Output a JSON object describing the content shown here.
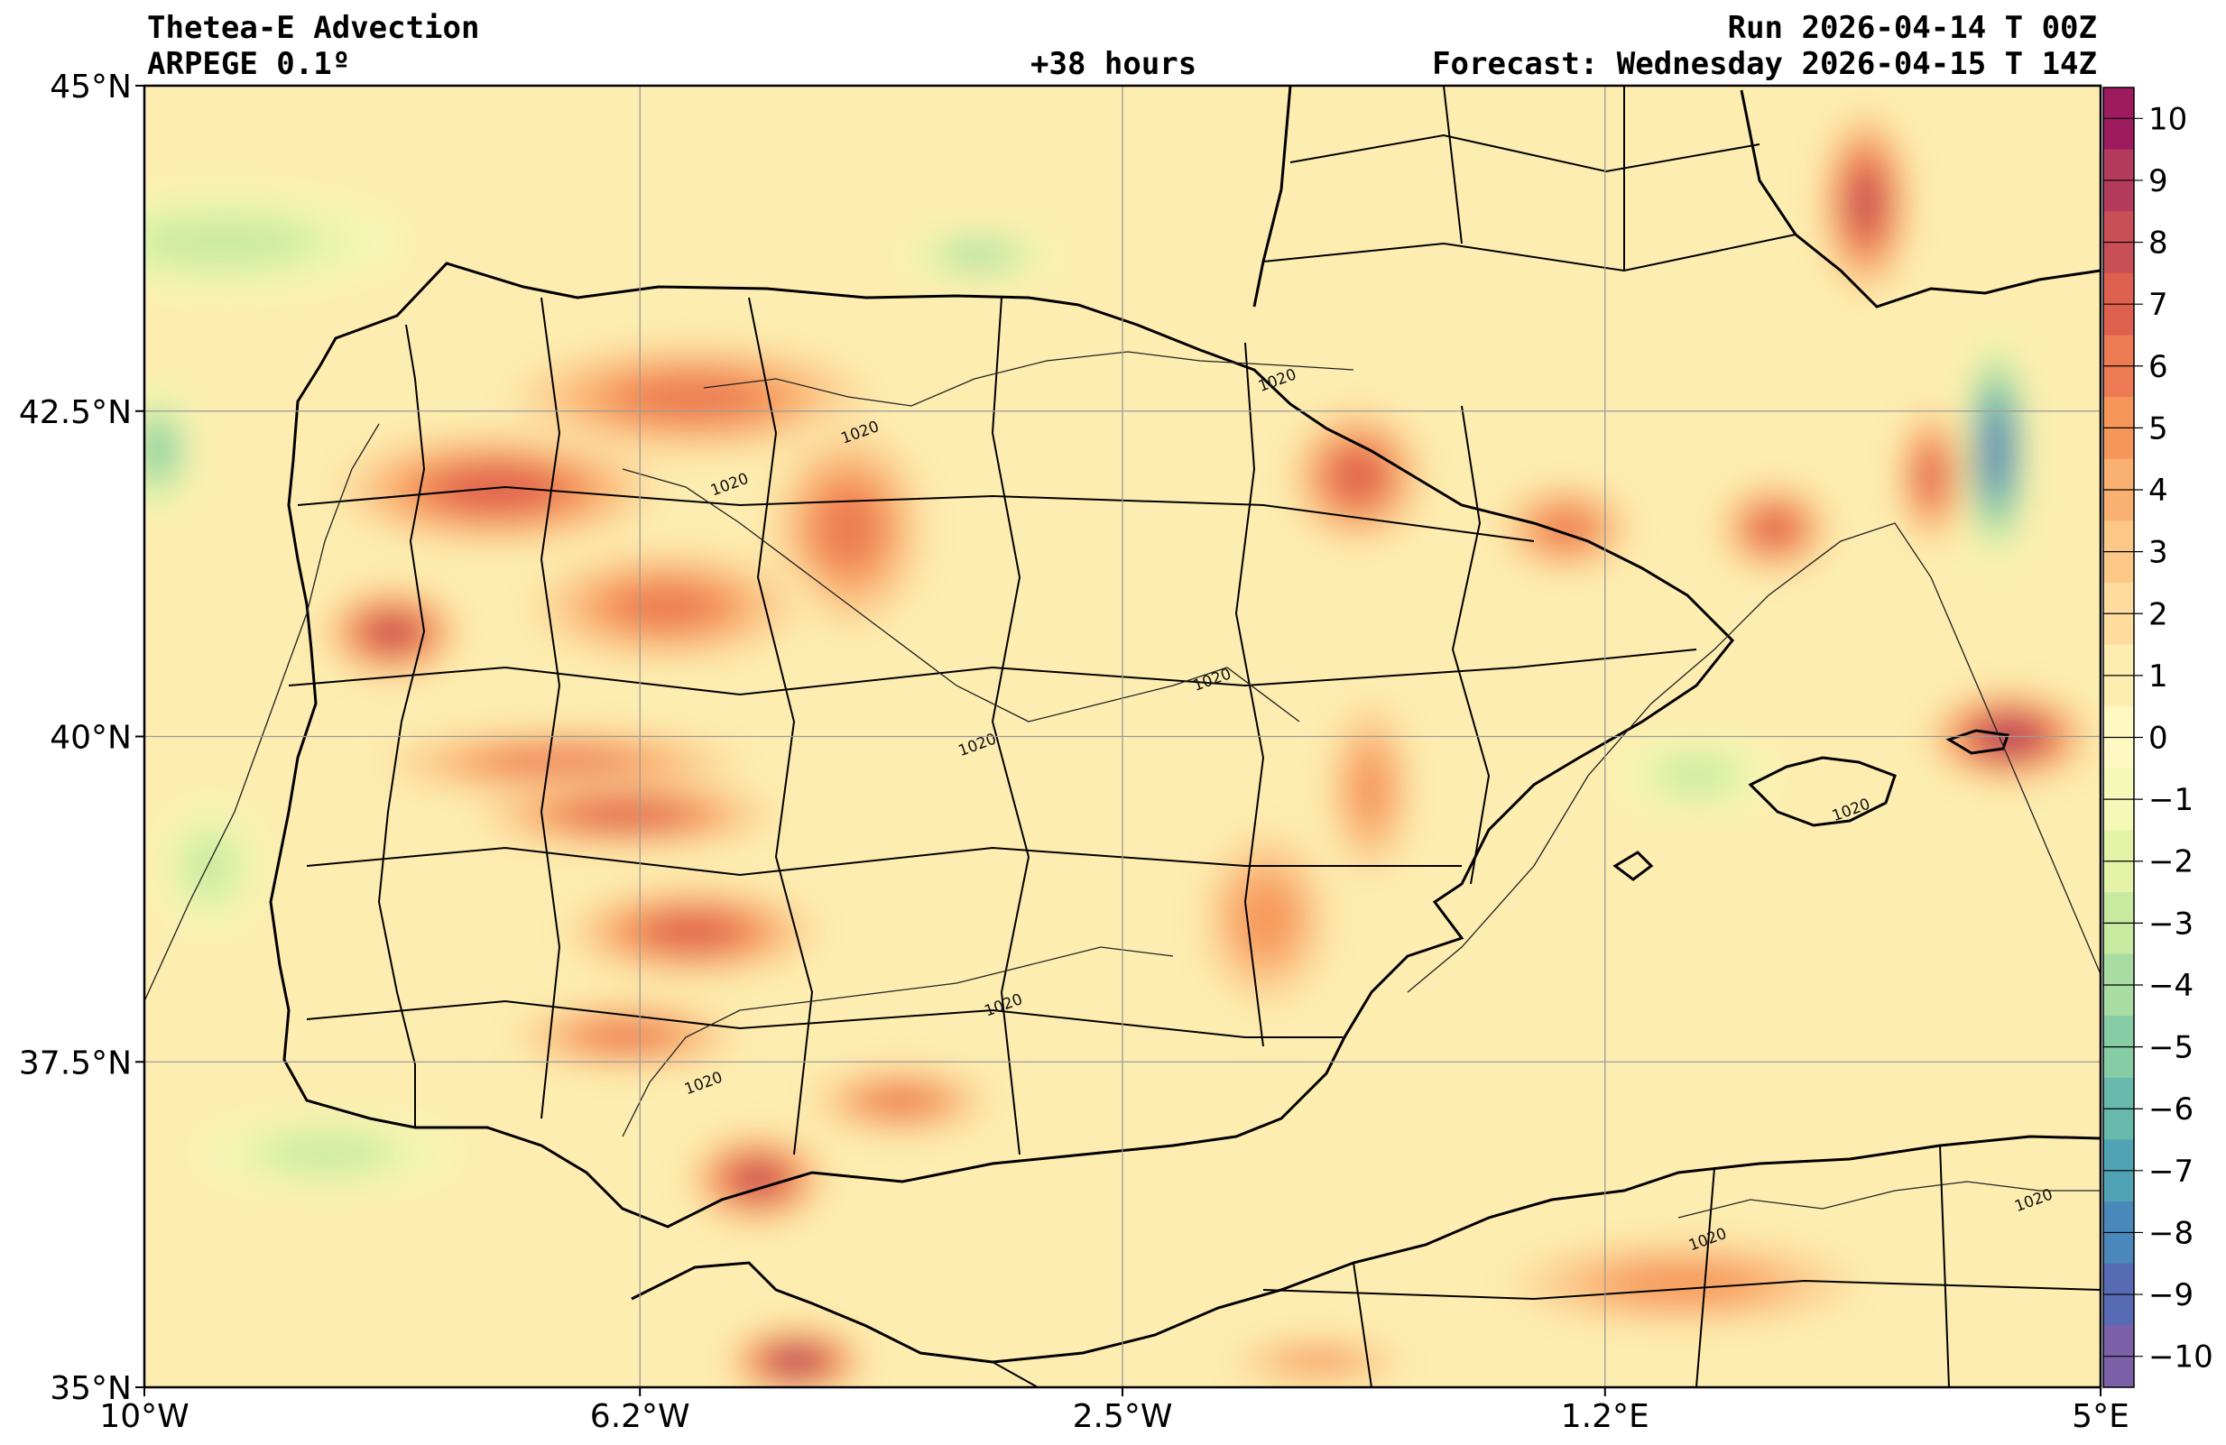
{
  "header": {
    "title": "Thetea-E Advection",
    "model": "ARPEGE 0.1º",
    "lead": "+38 hours",
    "run": "Run 2026-04-14 T 00Z",
    "forecast": "Forecast: Wednesday 2026-04-15 T 14Z"
  },
  "map": {
    "lon_range": [
      -10,
      5
    ],
    "lat_range": [
      35,
      45
    ],
    "x_ticks": [
      {
        "lon": -10,
        "label": "10°W"
      },
      {
        "lon": -6.2,
        "label": "6.2°W"
      },
      {
        "lon": -2.5,
        "label": "2.5°W"
      },
      {
        "lon": 1.2,
        "label": "1.2°E"
      },
      {
        "lon": 5,
        "label": "5°E"
      }
    ],
    "y_ticks": [
      {
        "lat": 45,
        "label": "45°N"
      },
      {
        "lat": 42.5,
        "label": "42.5°N"
      },
      {
        "lat": 40,
        "label": "40°N"
      },
      {
        "lat": 37.5,
        "label": "37.5°N"
      },
      {
        "lat": 35,
        "label": "35°N"
      }
    ],
    "grid": true,
    "isobar_label": "1020",
    "isobar_labels": [
      {
        "lon": -1.3,
        "lat": 42.7
      },
      {
        "lon": -4.5,
        "lat": 42.3
      },
      {
        "lon": -5.5,
        "lat": 41.9
      },
      {
        "lon": -3.6,
        "lat": 39.9
      },
      {
        "lon": -1.8,
        "lat": 40.4
      },
      {
        "lon": -3.4,
        "lat": 37.9
      },
      {
        "lon": -5.7,
        "lat": 37.3
      },
      {
        "lon": 3.1,
        "lat": 39.4
      },
      {
        "lon": 2.0,
        "lat": 36.1
      },
      {
        "lon": 4.5,
        "lat": 36.4
      }
    ]
  },
  "colorbar": {
    "ticks": [
      "10",
      "9",
      "8",
      "7",
      "6",
      "5",
      "4",
      "3",
      "2",
      "1",
      "0",
      "−1",
      "−2",
      "−3",
      "−4",
      "−5",
      "−6",
      "−7",
      "−8",
      "−9",
      "−10"
    ],
    "colors": [
      "#9e1a5f",
      "#b53b5e",
      "#c94f57",
      "#de6150",
      "#ec7a52",
      "#f5965a",
      "#f9b070",
      "#fcc888",
      "#fddc9e",
      "#fdedb0",
      "#fef8c2",
      "#f5f8b8",
      "#e4f3a8",
      "#c8e9a0",
      "#a8dca3",
      "#86cca5",
      "#66b9ab",
      "#50a3b5",
      "#4a87bb",
      "#566bb3",
      "#7b60a8"
    ]
  },
  "fields": {
    "max_patches": [
      {
        "lon": -7.3,
        "lat": 41.9,
        "rx": 1.4,
        "ry": 0.5,
        "level": 7
      },
      {
        "lon": -5.8,
        "lat": 42.6,
        "rx": 1.6,
        "ry": 0.5,
        "level": 6
      },
      {
        "lon": -4.6,
        "lat": 41.6,
        "rx": 0.7,
        "ry": 0.9,
        "level": 6
      },
      {
        "lon": -8.1,
        "lat": 40.8,
        "rx": 0.6,
        "ry": 0.4,
        "level": 8
      },
      {
        "lon": -6.0,
        "lat": 41.0,
        "rx": 1.2,
        "ry": 0.5,
        "level": 6
      },
      {
        "lon": -6.8,
        "lat": 39.8,
        "rx": 1.6,
        "ry": 0.3,
        "level": 6
      },
      {
        "lon": -6.3,
        "lat": 39.4,
        "rx": 1.3,
        "ry": 0.3,
        "level": 7
      },
      {
        "lon": -5.8,
        "lat": 38.5,
        "rx": 1.1,
        "ry": 0.4,
        "level": 7
      },
      {
        "lon": -6.3,
        "lat": 37.7,
        "rx": 1.0,
        "ry": 0.3,
        "level": 6
      },
      {
        "lon": -5.3,
        "lat": 36.6,
        "rx": 0.6,
        "ry": 0.4,
        "level": 8
      },
      {
        "lon": -4.2,
        "lat": 37.2,
        "rx": 0.8,
        "ry": 0.3,
        "level": 6
      },
      {
        "lon": -5.0,
        "lat": 35.2,
        "rx": 0.6,
        "ry": 0.3,
        "level": 9
      },
      {
        "lon": -0.7,
        "lat": 42.0,
        "rx": 0.6,
        "ry": 0.6,
        "level": 7
      },
      {
        "lon": 0.9,
        "lat": 41.6,
        "rx": 0.6,
        "ry": 0.4,
        "level": 6
      },
      {
        "lon": 2.5,
        "lat": 41.6,
        "rx": 0.5,
        "ry": 0.4,
        "level": 7
      },
      {
        "lon": 3.7,
        "lat": 42.0,
        "rx": 0.3,
        "ry": 0.6,
        "level": 7
      },
      {
        "lon": 3.2,
        "lat": 44.1,
        "rx": 0.4,
        "ry": 0.8,
        "level": 8
      },
      {
        "lon": 4.3,
        "lat": 40.0,
        "rx": 0.7,
        "ry": 0.4,
        "level": 9
      },
      {
        "lon": -1.4,
        "lat": 38.6,
        "rx": 0.6,
        "ry": 0.8,
        "level": 5
      },
      {
        "lon": -0.6,
        "lat": 39.6,
        "rx": 0.4,
        "ry": 0.8,
        "level": 5
      },
      {
        "lon": 1.8,
        "lat": 35.8,
        "rx": 1.6,
        "ry": 0.4,
        "level": 5
      },
      {
        "lon": -1.0,
        "lat": 35.2,
        "rx": 0.8,
        "ry": 0.2,
        "level": 5
      }
    ],
    "min_patches": [
      {
        "lon": -9.4,
        "lat": 43.8,
        "rx": 1.4,
        "ry": 0.4,
        "level": -3
      },
      {
        "lon": -9.9,
        "lat": 42.2,
        "rx": 0.3,
        "ry": 0.5,
        "level": -5
      },
      {
        "lon": -3.6,
        "lat": 43.7,
        "rx": 0.6,
        "ry": 0.2,
        "level": -4
      },
      {
        "lon": 4.2,
        "lat": 42.2,
        "rx": 0.25,
        "ry": 0.9,
        "level": -9
      },
      {
        "lon": 1.9,
        "lat": 39.7,
        "rx": 0.6,
        "ry": 0.3,
        "level": -3
      },
      {
        "lon": -8.6,
        "lat": 36.8,
        "rx": 1.0,
        "ry": 0.3,
        "level": -3
      },
      {
        "lon": -9.5,
        "lat": 39.0,
        "rx": 0.4,
        "ry": 0.5,
        "level": -3
      }
    ]
  }
}
